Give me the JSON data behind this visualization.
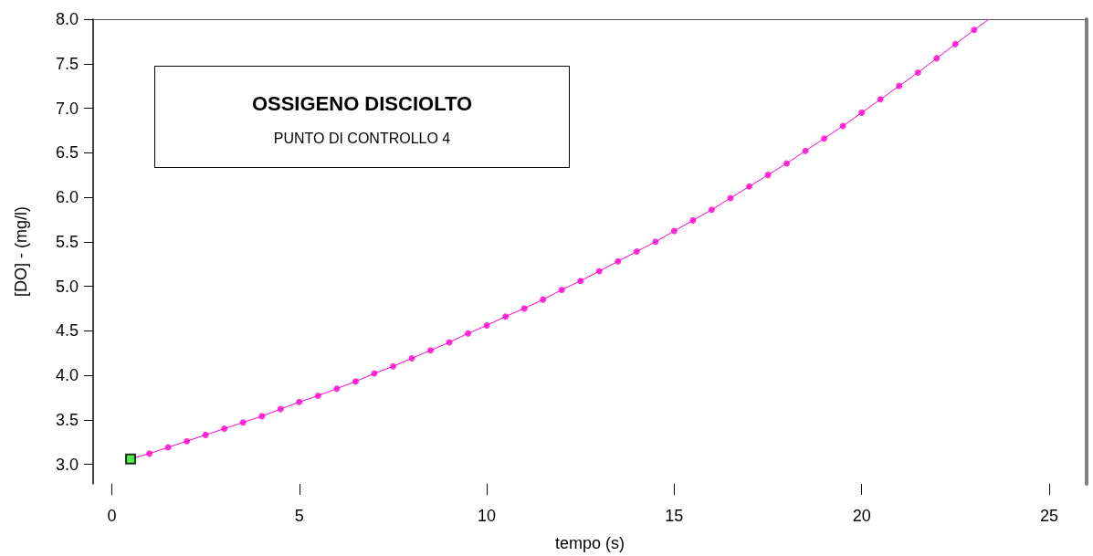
{
  "chart_data": {
    "type": "scatter",
    "title": "OSSIGENO DISCIOLTO",
    "subtitle": "PUNTO DI CONTROLLO 4",
    "xlabel": "tempo (s)",
    "ylabel": "[DO] - (mg/l)",
    "xlim": [
      -0.5,
      26
    ],
    "xticks": [
      0,
      5,
      10,
      15,
      20,
      25
    ],
    "ylim": [
      2.78,
      8.0
    ],
    "yticks": [
      {
        "value": 3,
        "label": "3.0"
      },
      {
        "value": 3.5,
        "label": "3.5"
      },
      {
        "value": 4,
        "label": "4.0"
      },
      {
        "value": 4.5,
        "label": "4.5"
      },
      {
        "value": 5,
        "label": "5.0"
      },
      {
        "value": 5.5,
        "label": "5.5"
      },
      {
        "value": 6,
        "label": "6.0"
      },
      {
        "value": 6.5,
        "label": "6.5"
      },
      {
        "value": 7,
        "label": "7.0"
      },
      {
        "value": 7.5,
        "label": "7.5"
      },
      {
        "value": 8,
        "label": "8.0"
      }
    ],
    "grid": false,
    "series": [
      {
        "type": "line",
        "color": "#ff00cc",
        "marker": "none",
        "x": [
          0.5,
          1,
          1.5,
          2,
          2.5,
          3,
          3.5,
          4,
          4.5,
          5,
          5.5,
          6,
          6.5,
          7,
          7.5,
          8,
          8.5,
          9,
          9.5,
          10,
          10.5,
          11,
          11.5,
          12,
          12.5,
          13,
          13.5,
          14,
          14.5,
          15,
          15.5,
          16,
          16.5,
          17,
          17.5,
          18,
          18.5,
          19,
          19.5,
          20,
          20.5,
          21,
          21.5,
          22,
          22.5,
          23,
          23.4
        ],
        "values": [
          3.06,
          3.12,
          3.19,
          3.26,
          3.33,
          3.4,
          3.47,
          3.54,
          3.62,
          3.7,
          3.77,
          3.85,
          3.93,
          4.02,
          4.1,
          4.19,
          4.28,
          4.37,
          4.47,
          4.56,
          4.66,
          4.75,
          4.85,
          4.96,
          5.06,
          5.17,
          5.28,
          5.39,
          5.5,
          5.62,
          5.74,
          5.86,
          5.99,
          6.12,
          6.25,
          6.38,
          6.52,
          6.66,
          6.8,
          6.95,
          7.1,
          7.25,
          7.4,
          7.56,
          7.72,
          7.88,
          8.0
        ]
      },
      {
        "color": "#ff00cc",
        "marker": "circle",
        "x": [
          1,
          1.5,
          2,
          2.5,
          3,
          3.5,
          4,
          4.5,
          5,
          5.5,
          6,
          6.5,
          7,
          7.5,
          8,
          8.5,
          9,
          9.5,
          10,
          10.5,
          11,
          11.5,
          12,
          12.5,
          13,
          13.5,
          14,
          14.5,
          15,
          15.5,
          16,
          16.5,
          17,
          17.5,
          18,
          18.5,
          19,
          19.5,
          20,
          20.5,
          21,
          21.5,
          22,
          22.5,
          23
        ],
        "values": [
          3.12,
          3.19,
          3.26,
          3.33,
          3.4,
          3.47,
          3.54,
          3.62,
          3.7,
          3.77,
          3.85,
          3.93,
          4.02,
          4.1,
          4.19,
          4.28,
          4.37,
          4.47,
          4.56,
          4.66,
          4.75,
          4.85,
          4.96,
          5.06,
          5.17,
          5.28,
          5.39,
          5.5,
          5.62,
          5.74,
          5.86,
          5.99,
          6.12,
          6.25,
          6.38,
          6.52,
          6.66,
          6.8,
          6.95,
          7.1,
          7.25,
          7.4,
          7.56,
          7.72,
          7.88
        ]
      },
      {
        "color": "#22ee22",
        "marker": "square",
        "x": [
          0.5
        ],
        "values": [
          3.06
        ]
      }
    ]
  }
}
